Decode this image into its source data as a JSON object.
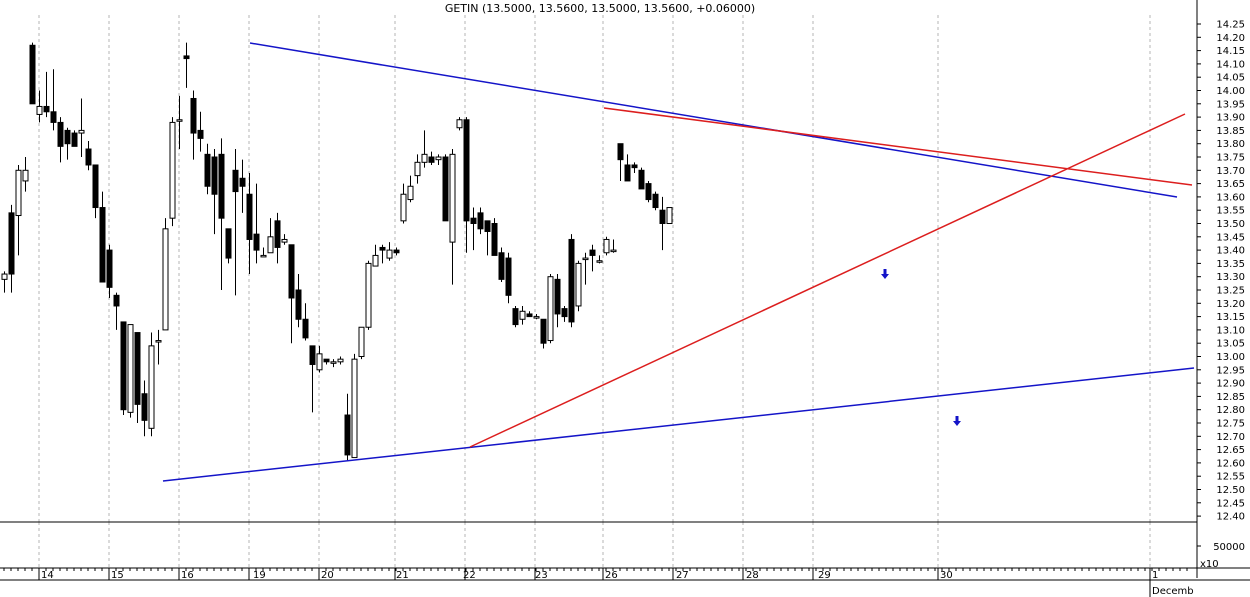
{
  "chart_data": {
    "type": "candlestick",
    "title": "GETIN (13.5000, 13.5600, 13.5000, 13.5600, +0.06000)",
    "price_axis": {
      "ylim": [
        12.35,
        14.28
      ],
      "ticks": [
        "14.25",
        "14.20",
        "14.15",
        "14.10",
        "14.05",
        "14.00",
        "13.95",
        "13.90",
        "13.85",
        "13.80",
        "13.75",
        "13.70",
        "13.65",
        "13.60",
        "13.55",
        "13.50",
        "13.45",
        "13.40",
        "13.35",
        "13.30",
        "13.25",
        "13.20",
        "13.15",
        "13.10",
        "13.05",
        "13.00",
        "12.95",
        "12.90",
        "12.85",
        "12.80",
        "12.75",
        "12.70",
        "12.65",
        "12.60",
        "12.55",
        "12.50",
        "12.45",
        "12.40"
      ]
    },
    "volume_axis": {
      "label": "50000",
      "multiplier": "x10"
    },
    "day_labels": [
      "14",
      "15",
      "16",
      "19",
      "20",
      "21",
      "22",
      "23",
      "26",
      "27",
      "28",
      "29",
      "30",
      "1"
    ],
    "month_label": "Decemb",
    "grid": true,
    "candles": [
      {
        "o": 13.29,
        "h": 13.32,
        "l": 13.24,
        "c": 13.31
      },
      {
        "o": 13.54,
        "h": 13.57,
        "l": 13.24,
        "c": 13.31
      },
      {
        "o": 13.53,
        "h": 13.72,
        "l": 13.38,
        "c": 13.7
      },
      {
        "o": 13.66,
        "h": 13.75,
        "l": 13.62,
        "c": 13.7
      },
      {
        "o": 14.17,
        "h": 14.18,
        "l": 13.95,
        "c": 13.95
      },
      {
        "o": 13.91,
        "h": 14.0,
        "l": 13.88,
        "c": 13.94
      },
      {
        "o": 13.94,
        "h": 14.07,
        "l": 13.9,
        "c": 13.92
      },
      {
        "o": 13.92,
        "h": 14.08,
        "l": 13.85,
        "c": 13.88
      },
      {
        "o": 13.88,
        "h": 13.9,
        "l": 13.73,
        "c": 13.79
      },
      {
        "o": 13.85,
        "h": 13.86,
        "l": 13.74,
        "c": 13.8
      },
      {
        "o": 13.84,
        "h": 13.85,
        "l": 13.79,
        "c": 13.79
      },
      {
        "o": 13.84,
        "h": 13.97,
        "l": 13.75,
        "c": 13.85
      },
      {
        "o": 13.78,
        "h": 13.81,
        "l": 13.7,
        "c": 13.72
      },
      {
        "o": 13.72,
        "h": 13.72,
        "l": 13.52,
        "c": 13.56
      },
      {
        "o": 13.56,
        "h": 13.62,
        "l": 13.28,
        "c": 13.28
      },
      {
        "o": 13.4,
        "h": 13.42,
        "l": 13.22,
        "c": 13.26
      },
      {
        "o": 13.23,
        "h": 13.24,
        "l": 13.1,
        "c": 13.19
      },
      {
        "o": 13.13,
        "h": 13.13,
        "l": 12.78,
        "c": 12.8
      },
      {
        "o": 12.79,
        "h": 13.11,
        "l": 12.77,
        "c": 13.12
      },
      {
        "o": 13.09,
        "h": 13.09,
        "l": 12.75,
        "c": 12.82
      },
      {
        "o": 12.86,
        "h": 12.91,
        "l": 12.7,
        "c": 12.76
      },
      {
        "o": 12.73,
        "h": 13.09,
        "l": 12.7,
        "c": 13.04
      },
      {
        "o": 13.06,
        "h": 13.1,
        "l": 12.97,
        "c": 13.06
      },
      {
        "o": 13.1,
        "h": 13.52,
        "l": 13.1,
        "c": 13.48
      },
      {
        "o": 13.52,
        "h": 13.9,
        "l": 13.49,
        "c": 13.88
      },
      {
        "o": 13.89,
        "h": 13.98,
        "l": 13.78,
        "c": 13.89
      },
      {
        "o": 14.13,
        "h": 14.18,
        "l": 14.01,
        "c": 14.12
      },
      {
        "o": 13.97,
        "h": 14.0,
        "l": 13.74,
        "c": 13.84
      },
      {
        "o": 13.85,
        "h": 13.92,
        "l": 13.77,
        "c": 13.82
      },
      {
        "o": 13.76,
        "h": 13.8,
        "l": 13.61,
        "c": 13.64
      },
      {
        "o": 13.75,
        "h": 13.78,
        "l": 13.46,
        "c": 13.61
      },
      {
        "o": 13.76,
        "h": 13.82,
        "l": 13.25,
        "c": 13.52
      },
      {
        "o": 13.48,
        "h": 13.48,
        "l": 13.35,
        "c": 13.37
      },
      {
        "o": 13.7,
        "h": 13.78,
        "l": 13.23,
        "c": 13.62
      },
      {
        "o": 13.67,
        "h": 13.74,
        "l": 13.54,
        "c": 13.64
      },
      {
        "o": 13.61,
        "h": 13.69,
        "l": 13.31,
        "c": 13.44
      },
      {
        "o": 13.46,
        "h": 13.65,
        "l": 13.35,
        "c": 13.4
      },
      {
        "o": 13.38,
        "h": 13.41,
        "l": 13.38,
        "c": 13.38
      },
      {
        "o": 13.39,
        "h": 13.52,
        "l": 13.39,
        "c": 13.45
      },
      {
        "o": 13.51,
        "h": 13.54,
        "l": 13.35,
        "c": 13.41
      },
      {
        "o": 13.43,
        "h": 13.46,
        "l": 13.42,
        "c": 13.44
      },
      {
        "o": 13.42,
        "h": 13.42,
        "l": 13.05,
        "c": 13.22
      },
      {
        "o": 13.25,
        "h": 13.31,
        "l": 13.11,
        "c": 13.14
      },
      {
        "o": 13.14,
        "h": 13.2,
        "l": 13.06,
        "c": 13.07
      },
      {
        "o": 13.04,
        "h": 13.04,
        "l": 12.79,
        "c": 12.97
      },
      {
        "o": 12.95,
        "h": 13.04,
        "l": 12.94,
        "c": 13.01
      },
      {
        "o": 12.99,
        "h": 12.99,
        "l": 12.97,
        "c": 12.98
      },
      {
        "o": 12.98,
        "h": 12.99,
        "l": 12.96,
        "c": 12.98
      },
      {
        "o": 12.98,
        "h": 13.0,
        "l": 12.97,
        "c": 12.99
      },
      {
        "o": 12.78,
        "h": 12.86,
        "l": 12.61,
        "c": 12.63
      },
      {
        "o": 12.62,
        "h": 13.01,
        "l": 12.62,
        "c": 12.99
      },
      {
        "o": 13.0,
        "h": 13.11,
        "l": 12.99,
        "c": 13.11
      },
      {
        "o": 13.11,
        "h": 13.36,
        "l": 13.1,
        "c": 13.35
      },
      {
        "o": 13.34,
        "h": 13.42,
        "l": 13.34,
        "c": 13.38
      },
      {
        "o": 13.41,
        "h": 13.42,
        "l": 13.35,
        "c": 13.4
      },
      {
        "o": 13.37,
        "h": 13.43,
        "l": 13.36,
        "c": 13.4
      },
      {
        "o": 13.4,
        "h": 13.41,
        "l": 13.38,
        "c": 13.39
      },
      {
        "o": 13.51,
        "h": 13.65,
        "l": 13.5,
        "c": 13.61
      },
      {
        "o": 13.59,
        "h": 13.68,
        "l": 13.58,
        "c": 13.64
      },
      {
        "o": 13.68,
        "h": 13.76,
        "l": 13.65,
        "c": 13.73
      },
      {
        "o": 13.73,
        "h": 13.85,
        "l": 13.71,
        "c": 13.76
      },
      {
        "o": 13.75,
        "h": 13.77,
        "l": 13.72,
        "c": 13.73
      },
      {
        "o": 13.74,
        "h": 13.76,
        "l": 13.72,
        "c": 13.75
      },
      {
        "o": 13.75,
        "h": 13.76,
        "l": 13.51,
        "c": 13.51
      },
      {
        "o": 13.43,
        "h": 13.78,
        "l": 13.27,
        "c": 13.76
      },
      {
        "o": 13.86,
        "h": 13.9,
        "l": 13.85,
        "c": 13.89
      },
      {
        "o": 13.89,
        "h": 13.9,
        "l": 13.39,
        "c": 13.51
      },
      {
        "o": 13.52,
        "h": 13.56,
        "l": 13.4,
        "c": 13.5
      },
      {
        "o": 13.54,
        "h": 13.56,
        "l": 13.46,
        "c": 13.48
      },
      {
        "o": 13.51,
        "h": 13.51,
        "l": 13.38,
        "c": 13.47
      },
      {
        "o": 13.5,
        "h": 13.52,
        "l": 13.38,
        "c": 13.38
      },
      {
        "o": 13.39,
        "h": 13.41,
        "l": 13.28,
        "c": 13.29
      },
      {
        "o": 13.37,
        "h": 13.39,
        "l": 13.2,
        "c": 13.23
      },
      {
        "o": 13.18,
        "h": 13.19,
        "l": 13.11,
        "c": 13.12
      },
      {
        "o": 13.14,
        "h": 13.19,
        "l": 13.12,
        "c": 13.17
      },
      {
        "o": 13.16,
        "h": 13.17,
        "l": 13.15,
        "c": 13.15
      },
      {
        "o": 13.15,
        "h": 13.16,
        "l": 13.14,
        "c": 13.15
      },
      {
        "o": 13.14,
        "h": 13.14,
        "l": 13.03,
        "c": 13.05
      },
      {
        "o": 13.06,
        "h": 13.31,
        "l": 13.05,
        "c": 13.3
      },
      {
        "o": 13.29,
        "h": 13.31,
        "l": 13.11,
        "c": 13.16
      },
      {
        "o": 13.18,
        "h": 13.19,
        "l": 13.13,
        "c": 13.15
      },
      {
        "o": 13.44,
        "h": 13.46,
        "l": 13.11,
        "c": 13.13
      },
      {
        "o": 13.19,
        "h": 13.36,
        "l": 13.17,
        "c": 13.35
      },
      {
        "o": 13.37,
        "h": 13.39,
        "l": 13.27,
        "c": 13.37
      },
      {
        "o": 13.4,
        "h": 13.42,
        "l": 13.32,
        "c": 13.38
      },
      {
        "o": 13.36,
        "h": 13.38,
        "l": 13.35,
        "c": 13.36
      },
      {
        "o": 13.39,
        "h": 13.45,
        "l": 13.38,
        "c": 13.44
      },
      {
        "o": 13.4,
        "h": 13.44,
        "l": 13.39,
        "c": 13.4
      },
      {
        "o": 13.8,
        "h": 13.8,
        "l": 13.66,
        "c": 13.74
      },
      {
        "o": 13.72,
        "h": 13.76,
        "l": 13.66,
        "c": 13.66
      },
      {
        "o": 13.72,
        "h": 13.73,
        "l": 13.69,
        "c": 13.71
      },
      {
        "o": 13.7,
        "h": 13.71,
        "l": 13.63,
        "c": 13.63
      },
      {
        "o": 13.65,
        "h": 13.66,
        "l": 13.58,
        "c": 13.59
      },
      {
        "o": 13.61,
        "h": 13.62,
        "l": 13.55,
        "c": 13.56
      },
      {
        "o": 13.55,
        "h": 13.6,
        "l": 13.4,
        "c": 13.5
      },
      {
        "o": 13.5,
        "h": 13.56,
        "l": 13.5,
        "c": 13.56
      }
    ],
    "volumes": [
      0,
      0,
      0,
      0,
      0,
      0,
      0,
      0,
      0,
      0,
      0,
      0,
      0,
      0,
      0,
      0,
      0,
      0,
      0,
      0,
      0,
      0,
      0,
      0,
      0,
      0,
      0,
      0,
      0,
      0,
      0,
      0,
      0,
      0,
      0,
      0,
      0,
      0,
      0,
      0,
      0,
      0,
      0,
      0,
      0,
      0,
      0,
      0,
      0,
      0,
      0,
      0,
      0,
      0,
      0,
      0,
      0,
      0,
      0,
      0,
      0,
      0,
      0,
      0,
      0,
      0,
      0,
      0,
      0,
      0,
      0,
      0,
      0,
      0,
      0,
      0,
      0,
      0,
      0,
      0,
      0,
      0,
      0,
      0,
      0,
      0,
      0,
      0,
      0,
      0,
      0,
      0,
      0,
      0,
      0,
      0
    ],
    "trendlines": [
      {
        "name": "blue-upper",
        "color": "#1414c8",
        "from": [
          0,
          0
        ],
        "to": [
          0,
          0
        ]
      },
      {
        "name": "blue-lower",
        "color": "#1414c8",
        "from": [
          0,
          0
        ],
        "to": [
          0,
          0
        ]
      },
      {
        "name": "red-upper",
        "color": "#dc1e1e",
        "from": [
          0,
          0
        ],
        "to": [
          0,
          0
        ]
      },
      {
        "name": "red-lower",
        "color": "#dc1e1e",
        "from": [
          0,
          0
        ],
        "to": [
          0,
          0
        ]
      }
    ],
    "colors": {
      "bear": "#000000",
      "bull": "#ffffff",
      "blue": "#1414c8",
      "red": "#dc1e1e",
      "grid": "#b4b4b4"
    }
  }
}
